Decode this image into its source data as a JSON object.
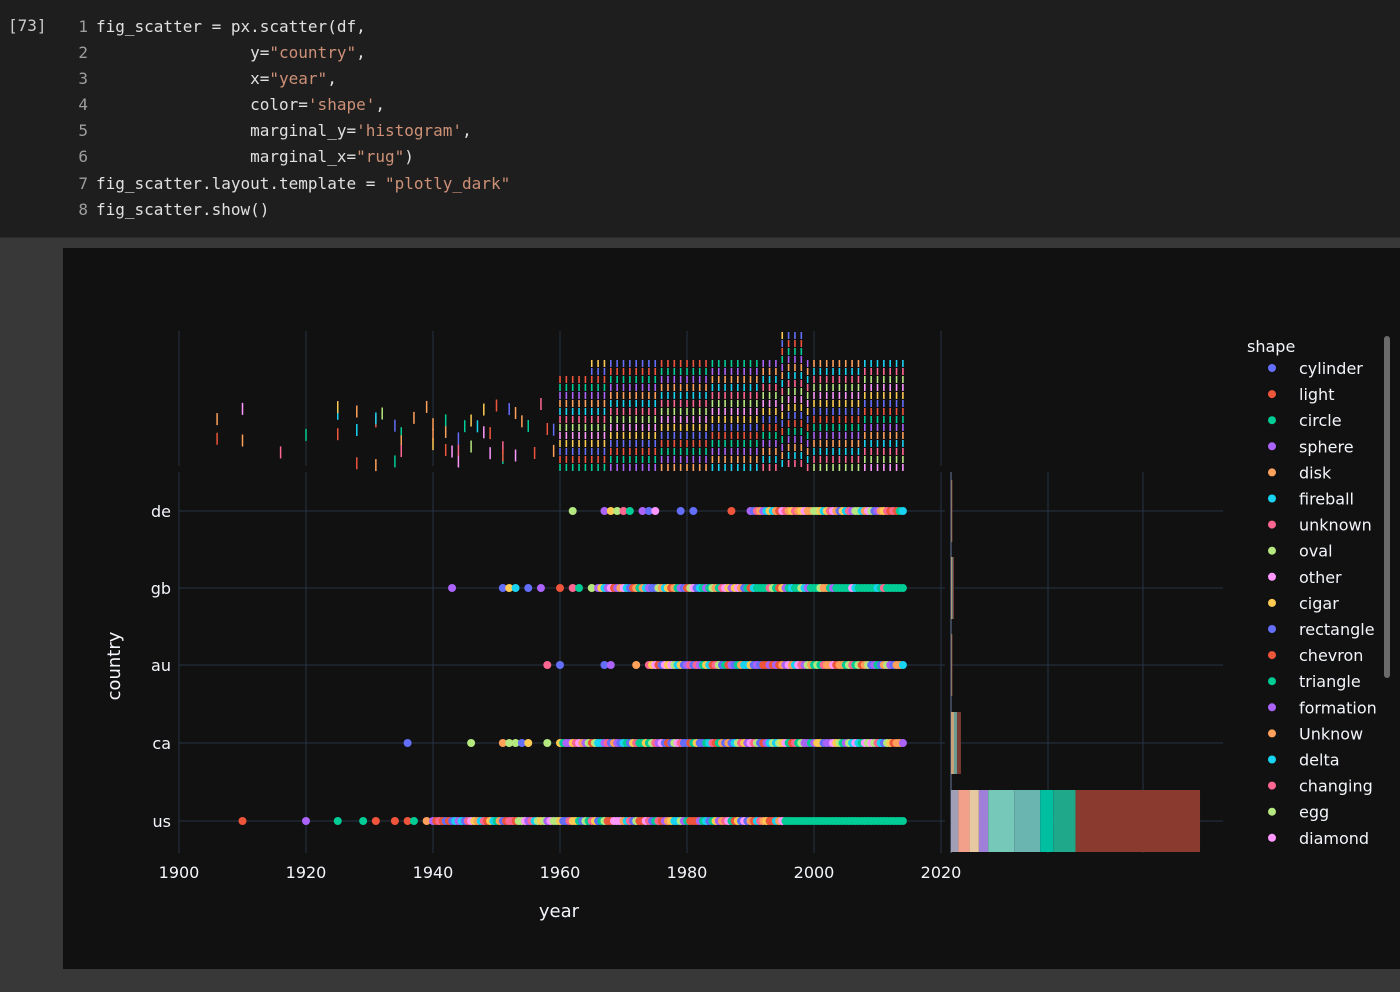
{
  "cell": {
    "prompt": "[73]",
    "lines": [
      {
        "num": "1",
        "parts": [
          {
            "t": "fig_scatter = px.scatter(df,",
            "c": "plain"
          }
        ]
      },
      {
        "num": "2",
        "parts": [
          {
            "t": "                y=",
            "c": "plain"
          },
          {
            "t": "\"country\"",
            "c": "str"
          },
          {
            "t": ",",
            "c": "plain"
          }
        ]
      },
      {
        "num": "3",
        "parts": [
          {
            "t": "                x=",
            "c": "plain"
          },
          {
            "t": "\"year\"",
            "c": "str"
          },
          {
            "t": ",",
            "c": "plain"
          }
        ]
      },
      {
        "num": "4",
        "parts": [
          {
            "t": "                color=",
            "c": "plain"
          },
          {
            "t": "'shape'",
            "c": "str"
          },
          {
            "t": ",",
            "c": "plain"
          }
        ]
      },
      {
        "num": "5",
        "parts": [
          {
            "t": "                marginal_y=",
            "c": "plain"
          },
          {
            "t": "'histogram'",
            "c": "str"
          },
          {
            "t": ",",
            "c": "plain"
          }
        ]
      },
      {
        "num": "6",
        "parts": [
          {
            "t": "                marginal_x=",
            "c": "plain"
          },
          {
            "t": "\"rug\"",
            "c": "str"
          },
          {
            "t": ")",
            "c": "plain"
          }
        ]
      },
      {
        "num": "7",
        "parts": [
          {
            "t": "fig_scatter.layout.template = ",
            "c": "plain"
          },
          {
            "t": "\"plotly_dark\"",
            "c": "str"
          }
        ]
      },
      {
        "num": "8",
        "parts": [
          {
            "t": "fig_scatter.show()",
            "c": "plain"
          }
        ]
      }
    ]
  },
  "colors": {
    "cylinder": "#636efa",
    "light": "#ef553b",
    "circle": "#00cc96",
    "sphere": "#ab63fa",
    "disk": "#ffa15a",
    "fireball": "#19d3f3",
    "unknown": "#ff6692",
    "oval": "#b6e880",
    "other": "#ff97ff",
    "cigar": "#fecb52"
  },
  "chart_data": {
    "type": "scatter",
    "xlabel": "year",
    "ylabel": "country",
    "xlim": [
      1900,
      2020
    ],
    "x_ticks": [
      "1900",
      "1920",
      "1940",
      "1960",
      "1980",
      "2000",
      "2020"
    ],
    "categories": [
      "de",
      "gb",
      "au",
      "ca",
      "us"
    ],
    "legend_title": "shape",
    "legend_position": "right",
    "legend": [
      {
        "name": "cylinder",
        "color": "#636efa"
      },
      {
        "name": "light",
        "color": "#ef553b"
      },
      {
        "name": "circle",
        "color": "#00cc96"
      },
      {
        "name": "sphere",
        "color": "#ab63fa"
      },
      {
        "name": "disk",
        "color": "#ffa15a"
      },
      {
        "name": "fireball",
        "color": "#19d3f3"
      },
      {
        "name": "unknown",
        "color": "#ff6692"
      },
      {
        "name": "oval",
        "color": "#b6e880"
      },
      {
        "name": "other",
        "color": "#ff97ff"
      },
      {
        "name": "cigar",
        "color": "#fecb52"
      },
      {
        "name": "rectangle",
        "color": "#636efa"
      },
      {
        "name": "chevron",
        "color": "#ef553b"
      },
      {
        "name": "triangle",
        "color": "#00cc96"
      },
      {
        "name": "formation",
        "color": "#ab63fa"
      },
      {
        "name": "Unknow",
        "color": "#ffa15a"
      },
      {
        "name": "delta",
        "color": "#19d3f3"
      },
      {
        "name": "changing",
        "color": "#ff6692"
      },
      {
        "name": "egg",
        "color": "#b6e880"
      },
      {
        "name": "diamond",
        "color": "#ff97ff"
      }
    ],
    "points": [
      {
        "country": "de",
        "start": 1962,
        "sparse": [
          1962,
          1967,
          1968,
          1969,
          1970,
          1971,
          1973,
          1974,
          1975,
          1979,
          1981,
          1987
        ],
        "dense_from": 1990
      },
      {
        "country": "gb",
        "start": 1943,
        "sparse": [
          1943,
          1951,
          1952,
          1953,
          1955,
          1957,
          1960,
          1962,
          1963,
          1965
        ],
        "dense_from": 1966
      },
      {
        "country": "au",
        "start": 1958,
        "sparse": [
          1958,
          1960,
          1967,
          1968,
          1972
        ],
        "dense_from": 1974
      },
      {
        "country": "ca",
        "start": 1936,
        "sparse": [
          1936,
          1946,
          1951,
          1952,
          1953,
          1954,
          1955,
          1958
        ],
        "dense_from": 1960
      },
      {
        "country": "us",
        "start": 1910,
        "sparse": [
          1910,
          1920,
          1925,
          1929,
          1931,
          1934,
          1936,
          1937,
          1939
        ],
        "dense_from": 1940
      }
    ],
    "x_end": 2014,
    "marginal_y": {
      "type": "histogram",
      "counts": {
        "de": 1,
        "gb": 3,
        "au": 1,
        "ca": 10,
        "us": 250
      },
      "x_range": [
        0,
        260
      ]
    },
    "marginal_x": {
      "type": "rug"
    }
  }
}
